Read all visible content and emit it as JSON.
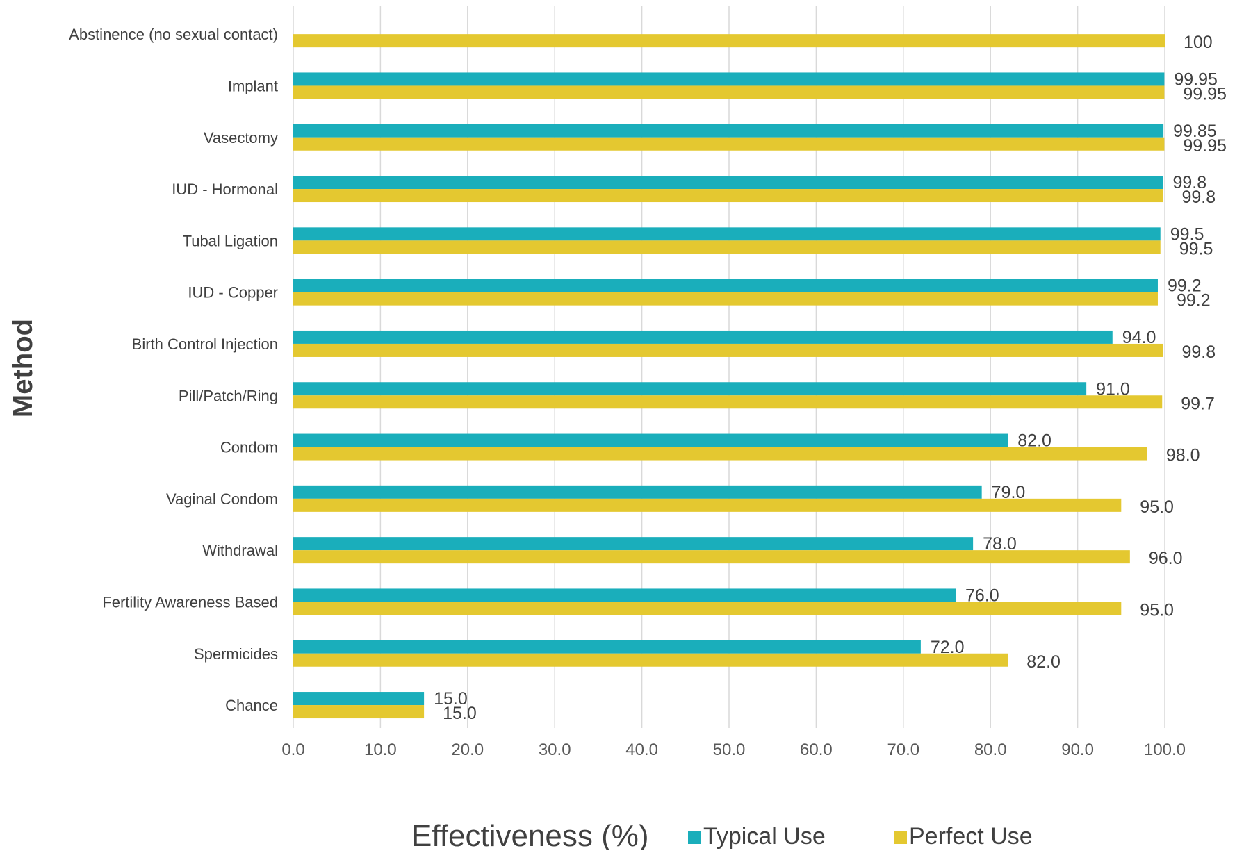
{
  "chart_data": {
    "type": "bar",
    "orientation": "horizontal",
    "title": "",
    "xlabel": "Effectiveness (%)",
    "ylabel": "Method",
    "xlim": [
      0,
      100
    ],
    "x_ticks": [
      "0.0",
      "10.0",
      "20.0",
      "30.0",
      "40.0",
      "50.0",
      "60.0",
      "70.0",
      "80.0",
      "90.0",
      "100.0"
    ],
    "grid": true,
    "legend": "bottom",
    "categories": [
      "Abstinence (no sexual contact)",
      "Implant",
      "Vasectomy",
      "IUD - Hormonal",
      "Tubal Ligation",
      "IUD - Copper",
      "Birth Control Injection",
      "Pill/Patch/Ring",
      "Condom",
      "Vaginal Condom",
      "Withdrawal",
      "Fertility Awareness Based",
      "Spermicides",
      "Chance"
    ],
    "series": [
      {
        "name": "Typical Use",
        "color": "#1aaebb",
        "values": [
          null,
          99.95,
          99.85,
          99.8,
          99.5,
          99.2,
          94.0,
          91.0,
          82.0,
          79.0,
          78.0,
          76.0,
          72.0,
          15.0
        ],
        "labels": [
          "",
          "99.95",
          "99.85",
          "99.8",
          "99.5",
          "99.2",
          "94.0",
          "91.0",
          "82.0",
          "79.0",
          "78.0",
          "76.0",
          "72.0",
          "15.0"
        ]
      },
      {
        "name": "Perfect Use",
        "color": "#e4c830",
        "values": [
          100,
          99.95,
          99.95,
          99.8,
          99.5,
          99.2,
          99.8,
          99.7,
          98.0,
          95.0,
          96.0,
          95.0,
          82.0,
          15.0
        ],
        "labels": [
          "100",
          "99.95",
          "99.95",
          "99.8",
          "99.5",
          "99.2",
          "99.8",
          "99.7",
          "98.0",
          "95.0",
          "96.0",
          "95.0",
          "82.0",
          "15.0"
        ]
      }
    ]
  }
}
